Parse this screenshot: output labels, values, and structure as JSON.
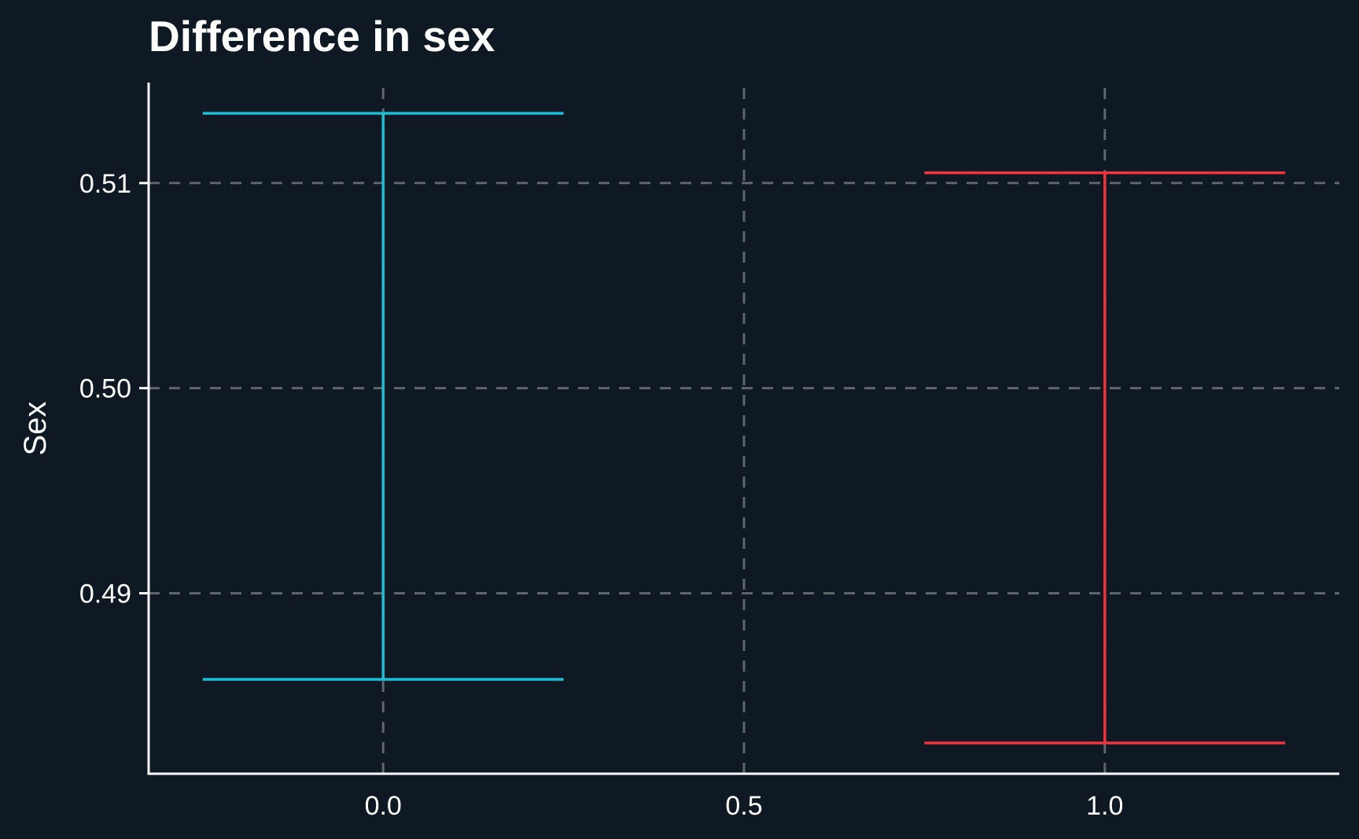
{
  "chart_data": {
    "type": "errorbar",
    "title": "Difference in sex",
    "xlabel": "",
    "ylabel": "Sex",
    "xlim": [
      -0.325,
      1.325
    ],
    "ylim": [
      0.4812,
      0.5149
    ],
    "x_ticks": [
      0.0,
      0.5,
      1.0
    ],
    "x_tick_labels": [
      "0.0",
      "0.5",
      "1.0"
    ],
    "y_ticks": [
      0.49,
      0.5,
      0.51
    ],
    "y_tick_labels": [
      "0.49",
      "0.50",
      "0.51"
    ],
    "grid": true,
    "series": [
      {
        "x": 0,
        "ymin": 0.4858,
        "ymax": 0.5134,
        "color": "#1ebdd3"
      },
      {
        "x": 1,
        "ymin": 0.4827,
        "ymax": 0.5105,
        "color": "#f0323c"
      }
    ],
    "errorbar_width": 0.5,
    "colors": {
      "background": "#0e1923",
      "axis": "#ffffff",
      "grid": "#5f656b",
      "text": "#ffffff"
    }
  }
}
